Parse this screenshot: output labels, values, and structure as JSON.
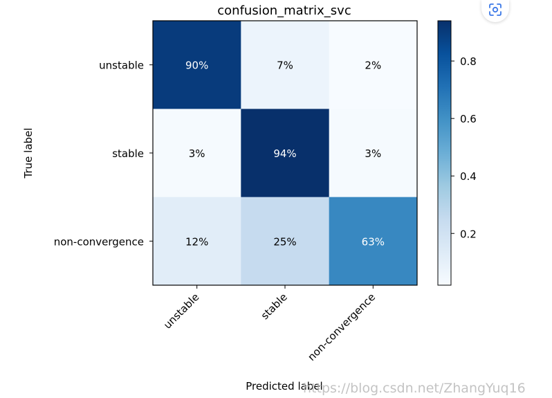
{
  "chart_data": {
    "type": "heatmap",
    "title": "confusion_matrix_svc",
    "xlabel": "Predicted label",
    "ylabel": "True label",
    "x_categories": [
      "unstable",
      "stable",
      "non-convergence"
    ],
    "y_categories": [
      "unstable",
      "stable",
      "non-convergence"
    ],
    "values": [
      [
        0.9,
        0.07,
        0.02
      ],
      [
        0.03,
        0.94,
        0.03
      ],
      [
        0.12,
        0.25,
        0.63
      ]
    ],
    "cell_labels": [
      [
        "90%",
        "7%",
        "2%"
      ],
      [
        "3%",
        "94%",
        "3%"
      ],
      [
        "12%",
        "25%",
        "63%"
      ]
    ],
    "colormap": "Blues",
    "colorbar": {
      "range": [
        0.02,
        0.94
      ],
      "ticks": [
        0.2,
        0.4,
        0.6,
        0.8
      ],
      "tick_labels": [
        "0.2",
        "0.4",
        "0.6",
        "0.8"
      ]
    }
  },
  "ui": {
    "watermark": "https://blog.csdn.net/ZhangYuq16",
    "scan_icon": "scan-icon"
  }
}
